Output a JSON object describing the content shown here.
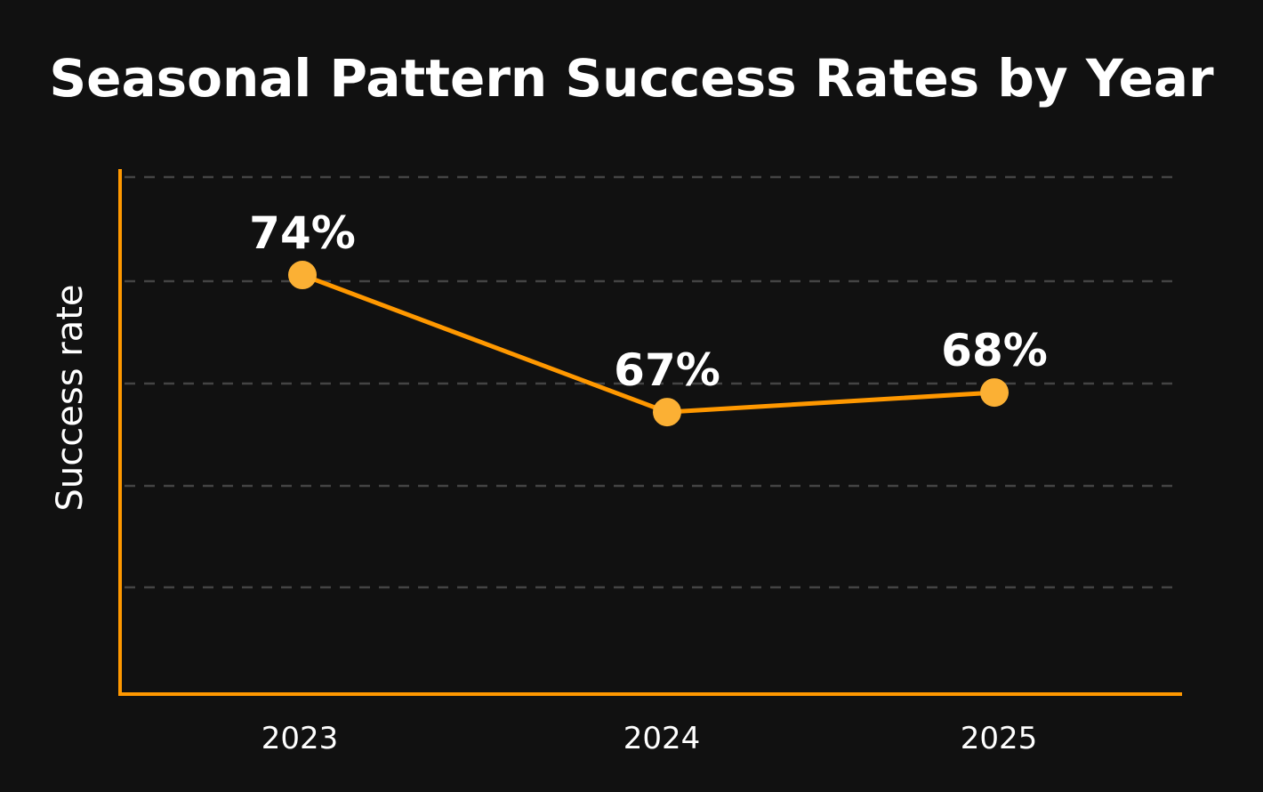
{
  "chart_data": {
    "type": "line",
    "title": "Seasonal Pattern Success Rates by Year",
    "xlabel": "",
    "ylabel": "Success rate",
    "categories": [
      "2023",
      "2024",
      "2025"
    ],
    "values": [
      74,
      67,
      68
    ],
    "data_labels": [
      "74%",
      "67%",
      "68%"
    ],
    "ylim": [
      52.6,
      79
    ],
    "grid": true,
    "colors": {
      "background": "#111111",
      "line": "#ff9800",
      "marker": "#fbb034",
      "axis": "#ff9800",
      "grid": "#444444",
      "text": "#ffffff"
    }
  }
}
